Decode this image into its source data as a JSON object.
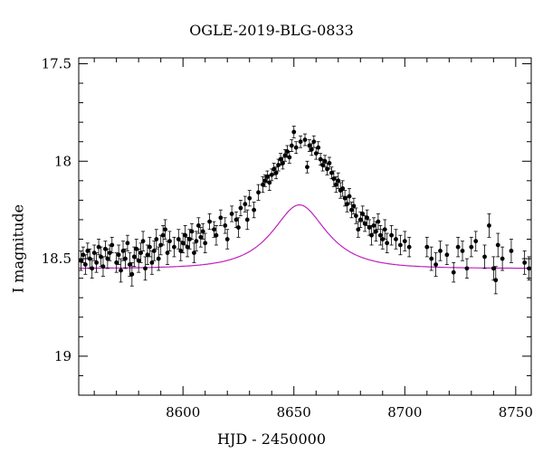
{
  "chart_data": {
    "type": "scatter",
    "title": "OGLE-2019-BLG-0833",
    "xlabel": "HJD - 2450000",
    "ylabel": "I magnitude",
    "xlim": [
      8553,
      8757
    ],
    "ylim": [
      19.2,
      17.47
    ],
    "y_inverted": true,
    "x_ticks": [
      8600,
      8650,
      8700,
      8750
    ],
    "y_ticks": [
      17.5,
      18,
      18.5,
      19
    ],
    "y_tick_labels": [
      "17.5",
      "18",
      "18.5",
      "19"
    ],
    "grid": false,
    "legend": "none",
    "model_color": "#c020c0",
    "point_color": "#000000",
    "model": {
      "t0": 8652.5,
      "tE": 20,
      "u0": 0.63,
      "baseline_mag": 18.55,
      "comment_free_params": true
    },
    "series": [
      {
        "points": [
          [
            8554,
            18.51,
            0.05
          ],
          [
            8555,
            18.48,
            0.04
          ],
          [
            8556,
            18.53,
            0.05
          ],
          [
            8557,
            18.46,
            0.04
          ],
          [
            8558,
            18.5,
            0.05
          ],
          [
            8559,
            18.55,
            0.05
          ],
          [
            8560,
            18.47,
            0.04
          ],
          [
            8561,
            18.52,
            0.05
          ],
          [
            8562,
            18.44,
            0.04
          ],
          [
            8563,
            18.49,
            0.05
          ],
          [
            8564,
            18.54,
            0.05
          ],
          [
            8565,
            18.45,
            0.04
          ],
          [
            8566,
            18.5,
            0.05
          ],
          [
            8567,
            18.47,
            0.04
          ],
          [
            8568,
            18.43,
            0.04
          ],
          [
            8570,
            18.52,
            0.05
          ],
          [
            8571,
            18.48,
            0.05
          ],
          [
            8572,
            18.56,
            0.06
          ],
          [
            8573,
            18.46,
            0.05
          ],
          [
            8574,
            18.5,
            0.05
          ],
          [
            8575,
            18.42,
            0.04
          ],
          [
            8576,
            18.53,
            0.06
          ],
          [
            8577,
            18.58,
            0.06
          ],
          [
            8578,
            18.49,
            0.05
          ],
          [
            8579,
            18.45,
            0.05
          ],
          [
            8580,
            18.51,
            0.06
          ],
          [
            8581,
            18.47,
            0.05
          ],
          [
            8582,
            18.41,
            0.05
          ],
          [
            8583,
            18.55,
            0.06
          ],
          [
            8584,
            18.48,
            0.05
          ],
          [
            8585,
            18.44,
            0.05
          ],
          [
            8586,
            18.52,
            0.06
          ],
          [
            8587,
            18.46,
            0.05
          ],
          [
            8588,
            18.4,
            0.05
          ],
          [
            8589,
            18.5,
            0.06
          ],
          [
            8590,
            18.43,
            0.05
          ],
          [
            8591,
            18.38,
            0.05
          ],
          [
            8592,
            18.35,
            0.05
          ],
          [
            8593,
            18.47,
            0.06
          ],
          [
            8594,
            18.41,
            0.05
          ],
          [
            8596,
            18.44,
            0.05
          ],
          [
            8598,
            18.4,
            0.05
          ],
          [
            8599,
            18.46,
            0.05
          ],
          [
            8600,
            18.42,
            0.05
          ],
          [
            8601,
            18.38,
            0.05
          ],
          [
            8602,
            18.44,
            0.05
          ],
          [
            8603,
            18.4,
            0.05
          ],
          [
            8604,
            18.36,
            0.04
          ],
          [
            8605,
            18.47,
            0.05
          ],
          [
            8606,
            18.41,
            0.05
          ],
          [
            8607,
            18.33,
            0.04
          ],
          [
            8608,
            18.39,
            0.05
          ],
          [
            8609,
            18.36,
            0.04
          ],
          [
            8610,
            18.42,
            0.05
          ],
          [
            8612,
            18.31,
            0.04
          ],
          [
            8614,
            18.35,
            0.04
          ],
          [
            8615,
            18.38,
            0.05
          ],
          [
            8617,
            18.29,
            0.04
          ],
          [
            8619,
            18.33,
            0.04
          ],
          [
            8620,
            18.4,
            0.05
          ],
          [
            8622,
            18.27,
            0.04
          ],
          [
            8624,
            18.3,
            0.04
          ],
          [
            8625,
            18.34,
            0.05
          ],
          [
            8626,
            18.24,
            0.04
          ],
          [
            8628,
            18.22,
            0.04
          ],
          [
            8629,
            18.3,
            0.05
          ],
          [
            8630,
            18.19,
            0.04
          ],
          [
            8632,
            18.25,
            0.04
          ],
          [
            8634,
            18.16,
            0.04
          ],
          [
            8636,
            18.12,
            0.04
          ],
          [
            8637,
            18.1,
            0.03
          ],
          [
            8638,
            18.08,
            0.03
          ],
          [
            8639,
            18.11,
            0.04
          ],
          [
            8640,
            18.07,
            0.03
          ],
          [
            8641,
            18.04,
            0.03
          ],
          [
            8642,
            18.06,
            0.03
          ],
          [
            8643,
            18.02,
            0.03
          ],
          [
            8644,
            17.99,
            0.03
          ],
          [
            8645,
            18.01,
            0.03
          ],
          [
            8646,
            17.97,
            0.03
          ],
          [
            8647,
            17.95,
            0.03
          ],
          [
            8648,
            17.98,
            0.03
          ],
          [
            8649,
            17.92,
            0.03
          ],
          [
            8650,
            17.85,
            0.03
          ],
          [
            8651,
            17.93,
            0.03
          ],
          [
            8653,
            17.9,
            0.03
          ],
          [
            8655,
            17.89,
            0.03
          ],
          [
            8656,
            18.03,
            0.03
          ],
          [
            8657,
            17.92,
            0.03
          ],
          [
            8658,
            17.94,
            0.03
          ],
          [
            8659,
            17.9,
            0.03
          ],
          [
            8660,
            17.96,
            0.03
          ],
          [
            8661,
            17.93,
            0.03
          ],
          [
            8662,
            17.99,
            0.03
          ],
          [
            8663,
            18.02,
            0.03
          ],
          [
            8664,
            18.0,
            0.03
          ],
          [
            8665,
            18.04,
            0.03
          ],
          [
            8666,
            18.01,
            0.03
          ],
          [
            8667,
            18.06,
            0.03
          ],
          [
            8668,
            18.09,
            0.04
          ],
          [
            8669,
            18.12,
            0.04
          ],
          [
            8670,
            18.1,
            0.04
          ],
          [
            8671,
            18.15,
            0.04
          ],
          [
            8672,
            18.14,
            0.04
          ],
          [
            8673,
            18.19,
            0.04
          ],
          [
            8674,
            18.22,
            0.04
          ],
          [
            8675,
            18.18,
            0.04
          ],
          [
            8676,
            18.25,
            0.04
          ],
          [
            8677,
            18.23,
            0.04
          ],
          [
            8678,
            18.28,
            0.04
          ],
          [
            8679,
            18.35,
            0.04
          ],
          [
            8680,
            18.3,
            0.04
          ],
          [
            8681,
            18.27,
            0.04
          ],
          [
            8682,
            18.32,
            0.04
          ],
          [
            8683,
            18.29,
            0.04
          ],
          [
            8684,
            18.34,
            0.04
          ],
          [
            8685,
            18.38,
            0.05
          ],
          [
            8686,
            18.33,
            0.04
          ],
          [
            8687,
            18.36,
            0.05
          ],
          [
            8688,
            18.31,
            0.04
          ],
          [
            8689,
            18.38,
            0.05
          ],
          [
            8690,
            18.4,
            0.05
          ],
          [
            8691,
            18.35,
            0.05
          ],
          [
            8692,
            18.42,
            0.05
          ],
          [
            8694,
            18.38,
            0.05
          ],
          [
            8696,
            18.4,
            0.05
          ],
          [
            8698,
            18.43,
            0.05
          ],
          [
            8700,
            18.41,
            0.05
          ],
          [
            8702,
            18.44,
            0.05
          ],
          [
            8710,
            18.44,
            0.05
          ],
          [
            8712,
            18.5,
            0.06
          ],
          [
            8714,
            18.53,
            0.06
          ],
          [
            8716,
            18.46,
            0.05
          ],
          [
            8719,
            18.48,
            0.05
          ],
          [
            8722,
            18.57,
            0.05
          ],
          [
            8724,
            18.44,
            0.05
          ],
          [
            8726,
            18.46,
            0.05
          ],
          [
            8728,
            18.55,
            0.05
          ],
          [
            8730,
            18.44,
            0.05
          ],
          [
            8732,
            18.41,
            0.05
          ],
          [
            8736,
            18.49,
            0.06
          ],
          [
            8738,
            18.33,
            0.06
          ],
          [
            8740,
            18.55,
            0.06
          ],
          [
            8741,
            18.61,
            0.07
          ],
          [
            8742,
            18.43,
            0.06
          ],
          [
            8744,
            18.5,
            0.06
          ],
          [
            8748,
            18.46,
            0.06
          ],
          [
            8754,
            18.52,
            0.06
          ],
          [
            8756,
            18.55,
            0.06
          ]
        ]
      }
    ]
  }
}
